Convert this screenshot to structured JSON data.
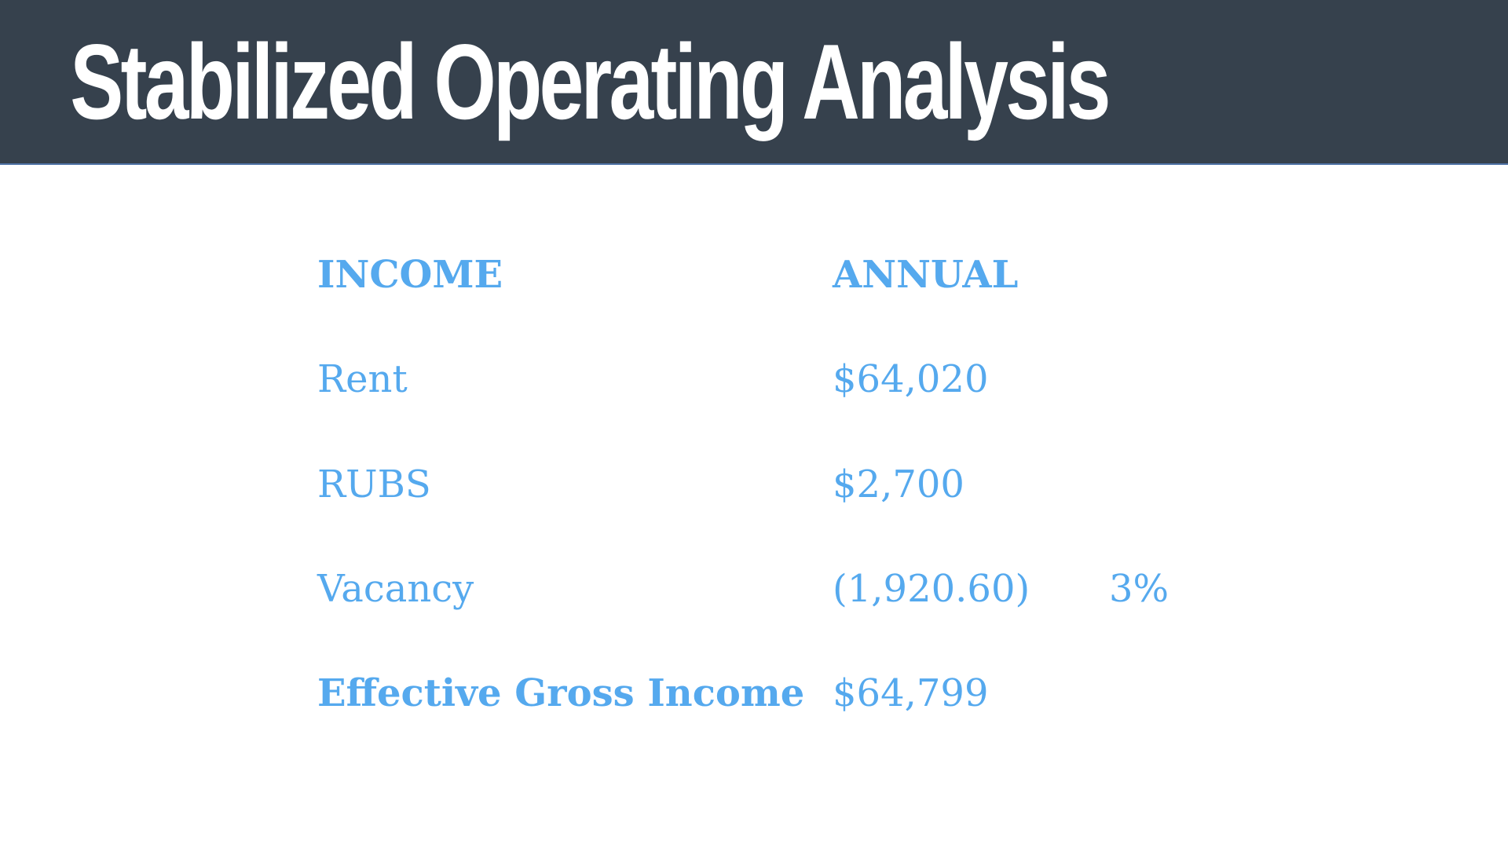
{
  "slide": {
    "title": "Stabilized Operating Analysis"
  },
  "table": {
    "headers": {
      "label": "INCOME",
      "value": "ANNUAL"
    },
    "rows": [
      {
        "label": "Rent",
        "value": "$64,020",
        "pct": ""
      },
      {
        "label": "RUBS",
        "value": "$2,700",
        "pct": ""
      },
      {
        "label": "Vacancy",
        "value": "(1,920.60)",
        "pct": "3%"
      },
      {
        "label": "Effective Gross Income",
        "value": "$64,799",
        "pct": ""
      }
    ]
  },
  "colors": {
    "title_bar": "#36414d",
    "title_text": "#ffffff",
    "table_text": "#55a9ee",
    "background": "#ffffff"
  }
}
